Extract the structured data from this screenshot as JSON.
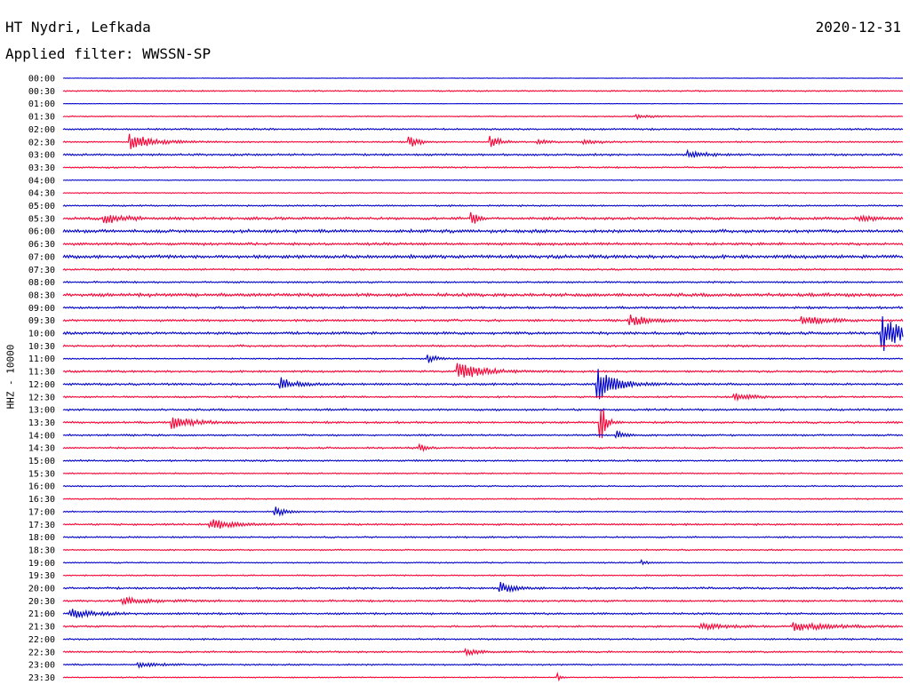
{
  "header": {
    "station": "HT Nydri, Lefkada",
    "date": "2020-12-31",
    "filter": "Applied filter: WWSSN-SP"
  },
  "chart_data": {
    "type": "line",
    "title": "HT Nydri, Lefkada",
    "subtitle": "Applied filter: WWSSN-SP",
    "ylabel": "HHZ - 10000",
    "colors": [
      "#0000cc",
      "#ff0033"
    ],
    "row_labels": [
      "00:00",
      "00:30",
      "01:00",
      "01:30",
      "02:00",
      "02:30",
      "03:00",
      "03:30",
      "04:00",
      "04:30",
      "05:00",
      "05:30",
      "06:00",
      "06:30",
      "07:00",
      "07:30",
      "08:00",
      "08:30",
      "09:00",
      "09:30",
      "10:00",
      "10:30",
      "11:00",
      "11:30",
      "12:00",
      "12:30",
      "13:00",
      "13:30",
      "14:00",
      "14:30",
      "15:00",
      "15:30",
      "16:00",
      "16:30",
      "17:00",
      "17:30",
      "18:00",
      "18:30",
      "19:00",
      "19:30",
      "20:00",
      "20:30",
      "21:00",
      "21:30",
      "22:00",
      "22:30",
      "23:00",
      "23:30"
    ],
    "noise": [
      0.2,
      0.6,
      0.2,
      0.5,
      0.8,
      0.7,
      0.9,
      0.7,
      0.4,
      0.5,
      0.7,
      1.2,
      1.4,
      1.2,
      1.5,
      0.8,
      0.8,
      1.5,
      1.0,
      1.0,
      1.2,
      0.9,
      0.6,
      0.9,
      1.0,
      0.8,
      0.9,
      0.9,
      0.8,
      0.8,
      0.8,
      0.6,
      0.6,
      0.6,
      0.6,
      0.8,
      0.7,
      0.6,
      0.6,
      0.6,
      0.9,
      0.9,
      0.9,
      0.8,
      0.7,
      0.8,
      0.7,
      0.5
    ],
    "events": [
      {
        "row": 3,
        "t": 0.683,
        "amp": 2,
        "dur": 0.02
      },
      {
        "row": 5,
        "t": 0.08,
        "amp": 9,
        "dur": 0.025
      },
      {
        "row": 5,
        "t": 0.412,
        "amp": 7,
        "dur": 0.01
      },
      {
        "row": 5,
        "t": 0.51,
        "amp": 7,
        "dur": 0.01
      },
      {
        "row": 5,
        "t": 0.565,
        "amp": 3,
        "dur": 0.01
      },
      {
        "row": 5,
        "t": 0.62,
        "amp": 3,
        "dur": 0.015
      },
      {
        "row": 6,
        "t": 0.745,
        "amp": 4,
        "dur": 0.02
      },
      {
        "row": 11,
        "t": 0.05,
        "amp": 6,
        "dur": 0.02
      },
      {
        "row": 11,
        "t": 0.487,
        "amp": 10,
        "dur": 0.005
      },
      {
        "row": 11,
        "t": 0.95,
        "amp": 3,
        "dur": 0.02
      },
      {
        "row": 19,
        "t": 0.675,
        "amp": 6,
        "dur": 0.02
      },
      {
        "row": 19,
        "t": 0.88,
        "amp": 5,
        "dur": 0.03
      },
      {
        "row": 20,
        "t": 0.975,
        "amp": 22,
        "dur": 0.02
      },
      {
        "row": 22,
        "t": 0.435,
        "amp": 5,
        "dur": 0.01
      },
      {
        "row": 23,
        "t": 0.47,
        "amp": 9,
        "dur": 0.03
      },
      {
        "row": 24,
        "t": 0.26,
        "amp": 7,
        "dur": 0.015
      },
      {
        "row": 24,
        "t": 0.637,
        "amp": 18,
        "dur": 0.02
      },
      {
        "row": 25,
        "t": 0.8,
        "amp": 4,
        "dur": 0.02
      },
      {
        "row": 27,
        "t": 0.13,
        "amp": 7,
        "dur": 0.025
      },
      {
        "row": 27,
        "t": 0.64,
        "amp": 30,
        "dur": 0.005
      },
      {
        "row": 28,
        "t": 0.66,
        "amp": 6,
        "dur": 0.008
      },
      {
        "row": 29,
        "t": 0.425,
        "amp": 4,
        "dur": 0.008
      },
      {
        "row": 34,
        "t": 0.252,
        "amp": 6,
        "dur": 0.012
      },
      {
        "row": 35,
        "t": 0.175,
        "amp": 6,
        "dur": 0.025
      },
      {
        "row": 38,
        "t": 0.69,
        "amp": 3,
        "dur": 0.005
      },
      {
        "row": 40,
        "t": 0.52,
        "amp": 7,
        "dur": 0.015
      },
      {
        "row": 41,
        "t": 0.07,
        "amp": 4,
        "dur": 0.03
      },
      {
        "row": 42,
        "t": 0.01,
        "amp": 5,
        "dur": 0.025
      },
      {
        "row": 43,
        "t": 0.76,
        "amp": 3,
        "dur": 0.03
      },
      {
        "row": 43,
        "t": 0.87,
        "amp": 5,
        "dur": 0.04
      },
      {
        "row": 45,
        "t": 0.48,
        "amp": 3,
        "dur": 0.02
      },
      {
        "row": 46,
        "t": 0.09,
        "amp": 3,
        "dur": 0.02
      },
      {
        "row": 47,
        "t": 0.59,
        "amp": 4,
        "dur": 0.004
      }
    ]
  }
}
